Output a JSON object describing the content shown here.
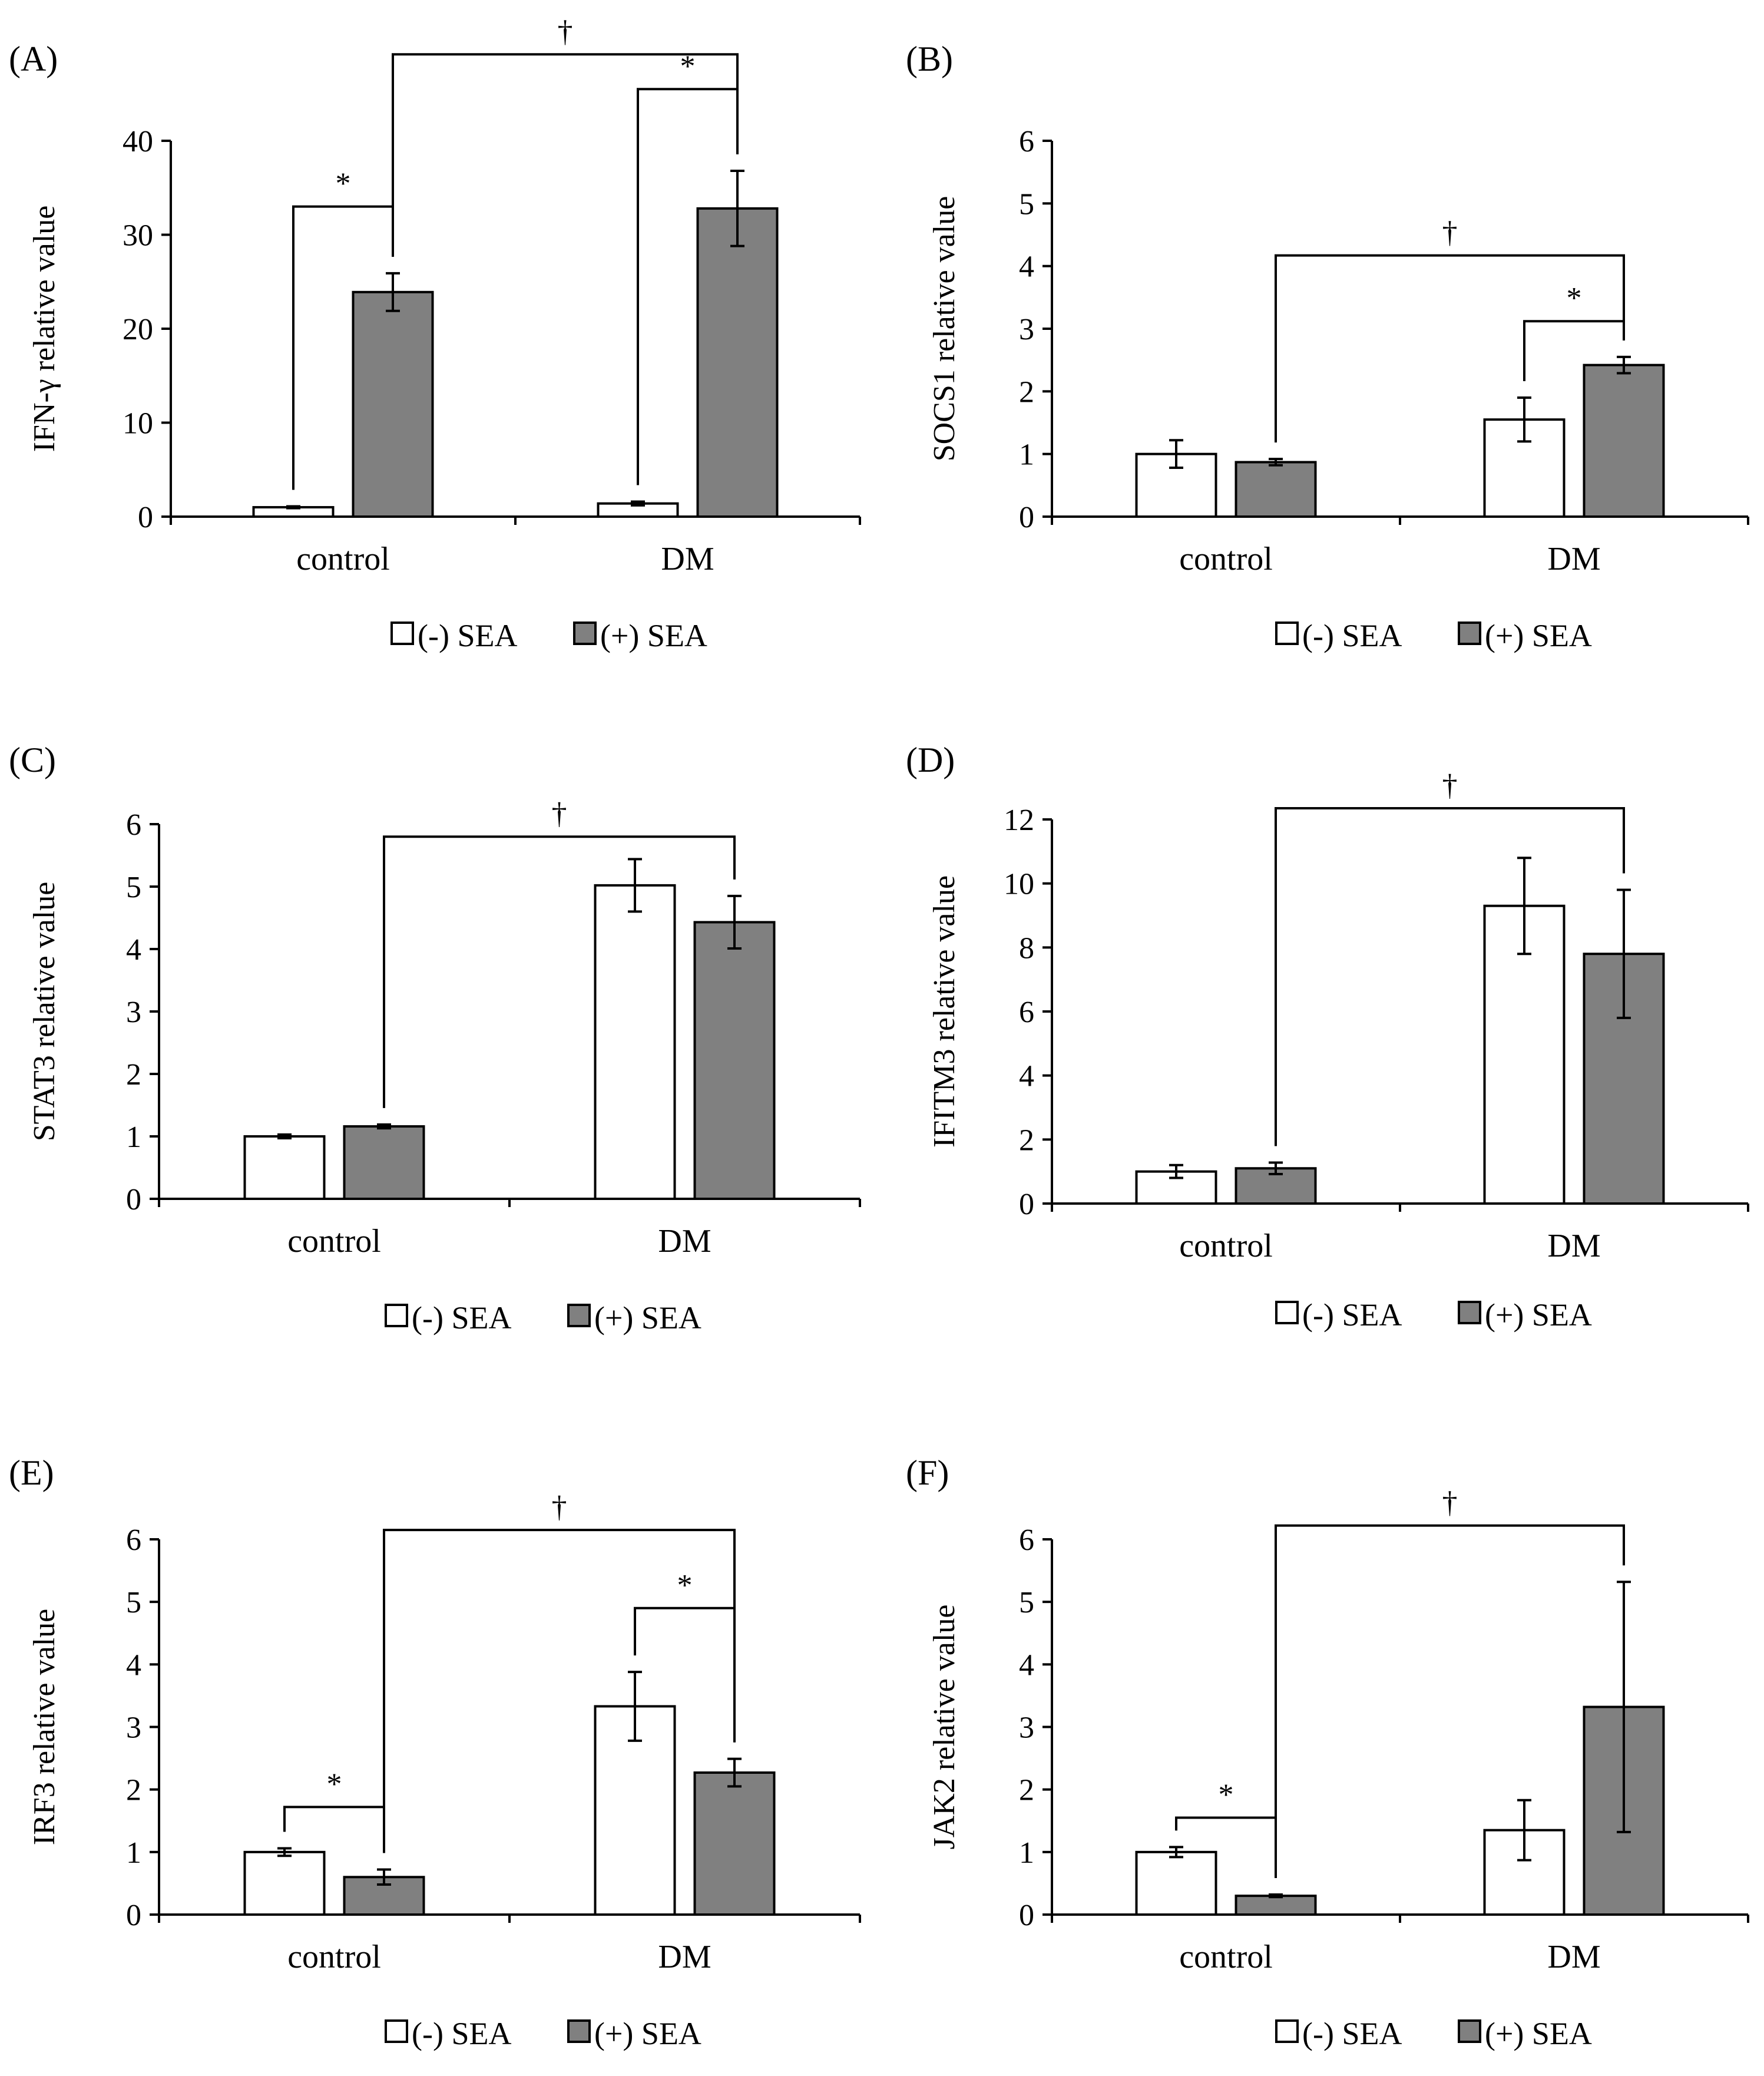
{
  "colors": {
    "minus_sea": "#ffffff",
    "plus_sea": "#808080",
    "axis": "#000000"
  },
  "chart_data": [
    {
      "panel": "(A)",
      "type": "bar",
      "categories": [
        "control",
        "DM"
      ],
      "ylabel": "IFN-γ relative value",
      "ylim": [
        0,
        40
      ],
      "yticks": [
        0,
        10,
        20,
        30,
        40
      ],
      "series": [
        {
          "name": "(-) SEA",
          "values": [
            1.0,
            1.4
          ],
          "errors": [
            0.1,
            0.2
          ]
        },
        {
          "name": "(+) SEA",
          "values": [
            23.9,
            32.8
          ],
          "errors": [
            2.0,
            4.0
          ]
        }
      ],
      "annotations": [
        {
          "symbol": "*",
          "from": [
            0,
            0
          ],
          "to": [
            0,
            1
          ],
          "level": 33
        },
        {
          "symbol": "*",
          "from": [
            1,
            0
          ],
          "to": [
            1,
            1
          ],
          "level": 45.5
        },
        {
          "symbol": "†",
          "from": [
            0,
            1
          ],
          "to": [
            1,
            1
          ],
          "level": 49.2
        }
      ]
    },
    {
      "panel": "(B)",
      "type": "bar",
      "categories": [
        "control",
        "DM"
      ],
      "ylabel": "SOCS1 relative value",
      "ylim": [
        0,
        6
      ],
      "yticks": [
        0,
        1,
        2,
        3,
        4,
        5,
        6
      ],
      "series": [
        {
          "name": "(-) SEA",
          "values": [
            1.0,
            1.55
          ],
          "errors": [
            0.22,
            0.35
          ]
        },
        {
          "name": "(+) SEA",
          "values": [
            0.87,
            2.42
          ],
          "errors": [
            0.05,
            0.13
          ]
        }
      ],
      "annotations": [
        {
          "symbol": "*",
          "from": [
            1,
            0
          ],
          "to": [
            1,
            1
          ],
          "level": 3.12
        },
        {
          "symbol": "†",
          "from": [
            0,
            1
          ],
          "to": [
            1,
            1
          ],
          "level": 4.17
        }
      ]
    },
    {
      "panel": "(C)",
      "type": "bar",
      "categories": [
        "control",
        "DM"
      ],
      "ylabel": "STAT3 relative value",
      "ylim": [
        0,
        6
      ],
      "yticks": [
        0,
        1,
        2,
        3,
        4,
        5,
        6
      ],
      "series": [
        {
          "name": "(-) SEA",
          "values": [
            1.0,
            5.02
          ],
          "errors": [
            0.03,
            0.42
          ]
        },
        {
          "name": "(+) SEA",
          "values": [
            1.16,
            4.43
          ],
          "errors": [
            0.03,
            0.42
          ]
        }
      ],
      "annotations": [
        {
          "symbol": "†",
          "from": [
            0,
            1
          ],
          "to": [
            1,
            1
          ],
          "level": 5.8
        }
      ]
    },
    {
      "panel": "(D)",
      "type": "bar",
      "categories": [
        "control",
        "DM"
      ],
      "ylabel": "IFITM3 relative value",
      "ylim": [
        0,
        12
      ],
      "yticks": [
        0,
        2,
        4,
        6,
        8,
        10,
        12
      ],
      "series": [
        {
          "name": "(-) SEA",
          "values": [
            1.0,
            9.3
          ],
          "errors": [
            0.2,
            1.5
          ]
        },
        {
          "name": "(+) SEA",
          "values": [
            1.1,
            7.8
          ],
          "errors": [
            0.18,
            2.0
          ]
        }
      ],
      "annotations": [
        {
          "symbol": "†",
          "from": [
            0,
            1
          ],
          "to": [
            1,
            1
          ],
          "level": 12.35
        }
      ]
    },
    {
      "panel": "(E)",
      "type": "bar",
      "categories": [
        "control",
        "DM"
      ],
      "ylabel": "IRF3 relative value",
      "ylim": [
        0,
        6
      ],
      "yticks": [
        0,
        1,
        2,
        3,
        4,
        5,
        6
      ],
      "series": [
        {
          "name": "(-) SEA",
          "values": [
            1.0,
            3.33
          ],
          "errors": [
            0.06,
            0.55
          ]
        },
        {
          "name": "(+) SEA",
          "values": [
            0.6,
            2.27
          ],
          "errors": [
            0.12,
            0.22
          ]
        }
      ],
      "annotations": [
        {
          "symbol": "*",
          "from": [
            0,
            0
          ],
          "to": [
            0,
            1
          ],
          "level": 1.72
        },
        {
          "symbol": "*",
          "from": [
            1,
            0
          ],
          "to": [
            1,
            1
          ],
          "level": 4.9
        },
        {
          "symbol": "†",
          "from": [
            0,
            1
          ],
          "to": [
            1,
            1
          ],
          "level": 6.15
        }
      ]
    },
    {
      "panel": "(F)",
      "type": "bar",
      "categories": [
        "control",
        "DM"
      ],
      "ylabel": "JAK2 relative value",
      "ylim": [
        0,
        6
      ],
      "yticks": [
        0,
        1,
        2,
        3,
        4,
        5,
        6
      ],
      "series": [
        {
          "name": "(-) SEA",
          "values": [
            1.0,
            1.35
          ],
          "errors": [
            0.08,
            0.48
          ]
        },
        {
          "name": "(+) SEA",
          "values": [
            0.3,
            3.32
          ],
          "errors": [
            0.02,
            2.0
          ]
        }
      ],
      "annotations": [
        {
          "symbol": "*",
          "from": [
            0,
            0
          ],
          "to": [
            0,
            1
          ],
          "level": 1.55
        },
        {
          "symbol": "†",
          "from": [
            0,
            1
          ],
          "to": [
            1,
            1
          ],
          "level": 6.22
        }
      ]
    }
  ]
}
